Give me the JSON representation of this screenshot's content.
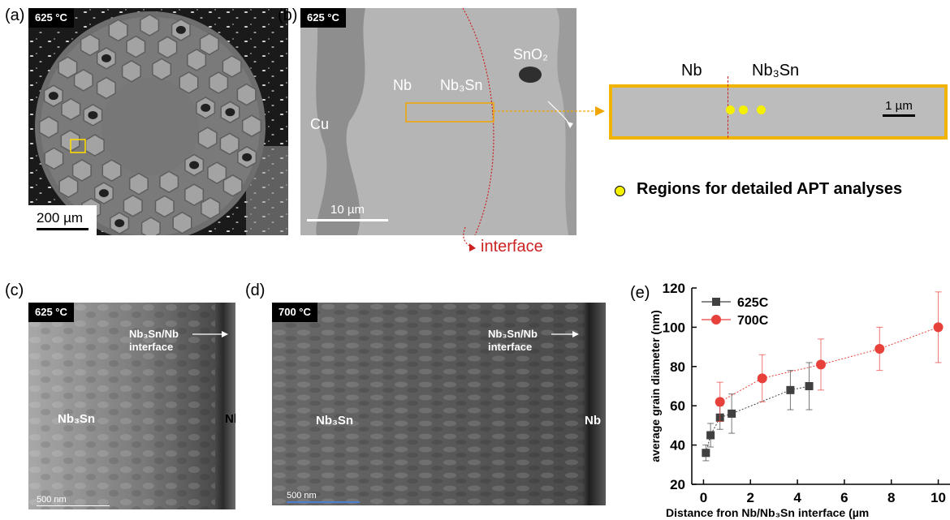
{
  "panels": {
    "a": {
      "label": "(a)",
      "temp": "625 °C",
      "scale": "200 µm"
    },
    "b": {
      "label": "(b)",
      "temp": "625 °C",
      "cu": "Cu",
      "nb": "Nb",
      "nb3sn": "Nb₃Sn",
      "sno2": "SnO₂",
      "scale": "10 µm",
      "interface": "interface"
    },
    "inset": {
      "nb": "Nb",
      "nb3sn": "Nb₃Sn",
      "scale": "1 µm",
      "legend": "Regions for detailed APT analyses"
    },
    "c": {
      "label": "(c)",
      "temp": "625 °C",
      "interface1": "Nb₃Sn/Nb",
      "interface2": "interface",
      "nb3sn": "Nb₃Sn",
      "nb": "Nb",
      "scale": "500 nm"
    },
    "d": {
      "label": "(d)",
      "temp": "700 °C",
      "interface1": "Nb₃Sn/Nb",
      "interface2": "interface",
      "nb3sn": "Nb₃Sn",
      "nb": "Nb",
      "scale": "500 nm"
    },
    "e": {
      "label": "(e)"
    }
  },
  "chart_data": {
    "type": "scatter",
    "xlabel": "Distance fron Nb/Nb₃Sn interface (µm",
    "ylabel": "average grain diameter (nm)",
    "xlim": [
      -0.5,
      10.5
    ],
    "ylim": [
      20,
      120
    ],
    "xticks": [
      0,
      2,
      4,
      6,
      8,
      10
    ],
    "yticks": [
      20,
      40,
      60,
      80,
      100,
      120
    ],
    "legend_position": "top-left",
    "series": [
      {
        "name": "625C",
        "color": "#404040",
        "marker": "square",
        "x": [
          0.1,
          0.3,
          0.7,
          1.2,
          3.7,
          4.5
        ],
        "y": [
          36,
          45,
          54,
          56,
          68,
          70
        ],
        "err": [
          4,
          6,
          6,
          10,
          10,
          12
        ]
      },
      {
        "name": "700C",
        "color": "#e8403a",
        "marker": "circle",
        "x": [
          0.7,
          2.5,
          5.0,
          7.5,
          10.0
        ],
        "y": [
          62,
          74,
          81,
          89,
          100
        ],
        "err": [
          10,
          12,
          13,
          11,
          18
        ]
      }
    ]
  }
}
